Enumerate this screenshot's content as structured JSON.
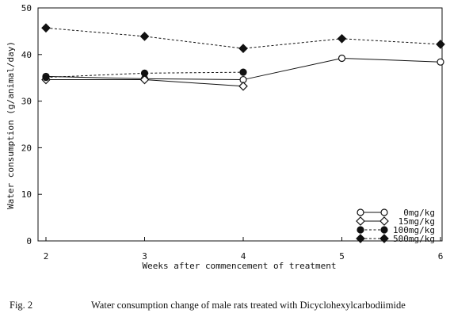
{
  "chart_data": {
    "type": "line",
    "title": "",
    "xlabel": "Weeks after commencement of treatment",
    "ylabel": "Water consumption (g/animal/day)",
    "x": [
      2,
      3,
      4,
      5,
      6
    ],
    "xlim": [
      2,
      6
    ],
    "ylim": [
      0,
      50
    ],
    "xticks": [
      "2",
      "3",
      "4",
      "5",
      "6"
    ],
    "yticks": [
      "0",
      "10",
      "20",
      "30",
      "40",
      "50"
    ],
    "grid": false,
    "legend_position": "bottom-right",
    "series": [
      {
        "name": "0mg/kg",
        "marker": "circle-open",
        "line": "solid",
        "x": [
          2,
          3,
          4,
          5,
          6
        ],
        "values": [
          35.3,
          34.8,
          34.6,
          39.2,
          38.4
        ]
      },
      {
        "name": "15mg/kg",
        "marker": "diamond-open",
        "line": "solid",
        "x": [
          2,
          3,
          4
        ],
        "values": [
          34.6,
          34.6,
          33.2
        ]
      },
      {
        "name": "100mg/kg",
        "marker": "circle-filled",
        "line": "dashed",
        "x": [
          2,
          3,
          4
        ],
        "values": [
          35.1,
          36.0,
          36.2
        ]
      },
      {
        "name": "500mg/kg",
        "marker": "diamond-filled",
        "line": "dashed",
        "x": [
          2,
          3,
          4,
          5,
          6
        ],
        "values": [
          45.7,
          43.9,
          41.3,
          43.4,
          42.2
        ]
      }
    ]
  },
  "caption": {
    "fig_label": "Fig. 2",
    "text": "Water consumption change of male rats treated with  Dicyclohexylcarbodiimide"
  }
}
